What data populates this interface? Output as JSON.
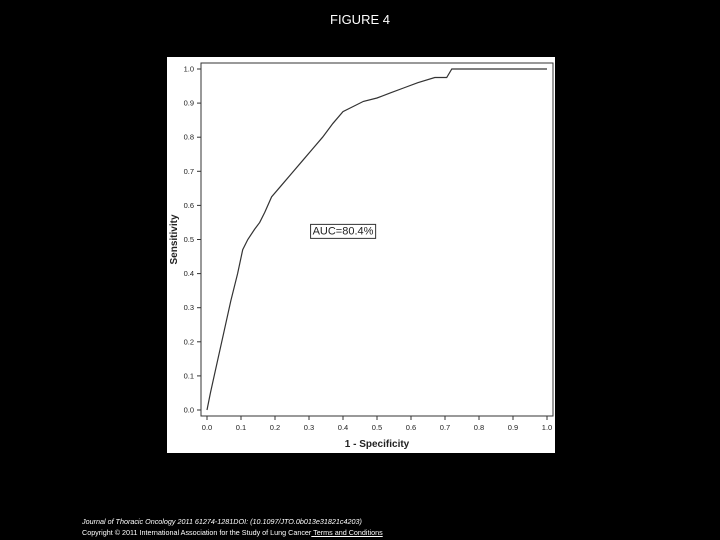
{
  "figure_title": "FIGURE 4",
  "caption": {
    "journal": "Journal of Thoracic Oncology 2011 61274-1281DOI: (10.1097/JTO.0b013e31821c4203)",
    "copyright": "Copyright © 2011 International Association for the Study of Lung Cancer",
    "terms_link": " Terms and Conditions"
  },
  "chart_data": {
    "type": "line",
    "xlabel": "1 - Specificity",
    "ylabel": "Sensitivity",
    "xlim": [
      0.0,
      1.0
    ],
    "ylim": [
      0.0,
      1.0
    ],
    "xticks": [
      "0.0",
      "0.1",
      "0.2",
      "0.3",
      "0.4",
      "0.5",
      "0.6",
      "0.7",
      "0.8",
      "0.9",
      "1.0"
    ],
    "yticks": [
      "0.0",
      "0.1",
      "0.2",
      "0.3",
      "0.4",
      "0.5",
      "0.6",
      "0.7",
      "0.8",
      "0.9",
      "1.0"
    ],
    "grid": false,
    "annotation": "AUC=80.4%",
    "colors": {
      "line": "#333333",
      "axis": "#333333",
      "annotation_border": "#333333"
    },
    "series": [
      {
        "x": [
          0.0,
          0.01,
          0.03,
          0.05,
          0.07,
          0.09,
          0.105,
          0.12,
          0.14,
          0.155,
          0.17,
          0.19,
          0.22,
          0.25,
          0.28,
          0.31,
          0.34,
          0.37,
          0.4,
          0.43,
          0.46,
          0.5,
          0.54,
          0.58,
          0.62,
          0.67,
          0.705,
          0.72,
          1.0
        ],
        "y": [
          0.0,
          0.05,
          0.14,
          0.23,
          0.32,
          0.4,
          0.47,
          0.5,
          0.53,
          0.55,
          0.58,
          0.625,
          0.66,
          0.695,
          0.73,
          0.765,
          0.8,
          0.84,
          0.875,
          0.89,
          0.905,
          0.915,
          0.93,
          0.945,
          0.96,
          0.975,
          0.975,
          1.0,
          1.0
        ]
      }
    ]
  }
}
